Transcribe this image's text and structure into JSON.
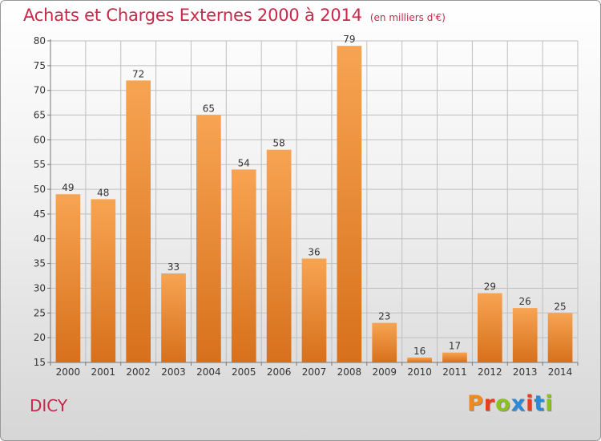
{
  "header": {
    "title": "Achats et Charges Externes 2000 à 2014",
    "unit": "(en milliers d'€)"
  },
  "footer": {
    "commune": "DICY",
    "logo_letters": [
      "P",
      "r",
      "o",
      "x",
      "i",
      "t",
      "i"
    ],
    "logo_colors": [
      "#f08a1c",
      "#e8401c",
      "#8cc21c",
      "#2a8ad8",
      "#e8401c",
      "#2a8ad8",
      "#8cc21c"
    ]
  },
  "chart_data": {
    "type": "bar",
    "title": "Achats et Charges Externes 2000 à 2014",
    "subtitle": "(en milliers d'€)",
    "categories": [
      "2000",
      "2001",
      "2002",
      "2003",
      "2004",
      "2005",
      "2006",
      "2007",
      "2008",
      "2009",
      "2010",
      "2011",
      "2012",
      "2013",
      "2014"
    ],
    "values": [
      49,
      48,
      72,
      33,
      65,
      54,
      58,
      36,
      79,
      23,
      16,
      17,
      29,
      26,
      25
    ],
    "ylim": [
      15,
      80
    ],
    "yticks": [
      15,
      20,
      25,
      30,
      35,
      40,
      45,
      50,
      55,
      60,
      65,
      70,
      75,
      80
    ],
    "grid": true,
    "bar_color_top": "#f7a452",
    "bar_color_bottom": "#d7701c",
    "grid_color": "#bfbfbf",
    "axis_color": "#777777"
  }
}
